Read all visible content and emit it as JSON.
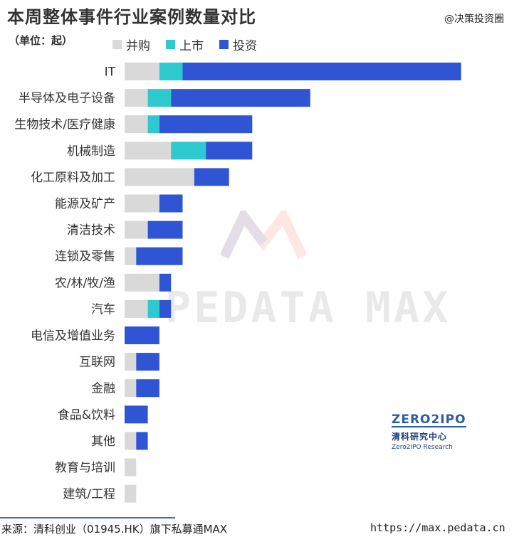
{
  "header": {
    "title": "本周整体事件行业案例数量对比",
    "unit": "（单位：起）",
    "source_tag": "@决策投资圈"
  },
  "chart_data": {
    "type": "bar",
    "orientation": "horizontal",
    "stacked": true,
    "categories": [
      "IT",
      "半导体及电子设备",
      "生物技术/医疗健康",
      "机械制造",
      "化工原料及加工",
      "能源及矿产",
      "清洁技术",
      "连锁及零售",
      "农/林/牧/渔",
      "汽车",
      "电信及增值业务",
      "互联网",
      "金融",
      "食品&饮料",
      "其他",
      "教育与培训",
      "建筑/工程"
    ],
    "series": [
      {
        "name": "并购",
        "color": "#d9d9d9",
        "values": [
          3,
          2,
          2,
          4,
          6,
          3,
          2,
          1,
          3,
          2,
          0,
          1,
          1,
          0,
          1,
          1,
          1
        ]
      },
      {
        "name": "上市",
        "color": "#2ec8cf",
        "values": [
          2,
          2,
          1,
          3,
          0,
          0,
          0,
          0,
          0,
          1,
          0,
          0,
          0,
          0,
          0,
          0,
          0
        ]
      },
      {
        "name": "投资",
        "color": "#2f55d4",
        "values": [
          24,
          12,
          8,
          4,
          3,
          2,
          3,
          4,
          1,
          1,
          3,
          2,
          2,
          2,
          1,
          0,
          0
        ]
      }
    ],
    "legend_position": "top-left",
    "grid": false,
    "xlim": [
      0,
      29
    ]
  },
  "branding": {
    "watermark_text": "PEDATA MAX",
    "logo_text": "ZERO2IPO",
    "logo_cn": "清科研究中心",
    "logo_en": "Zero2IPO Research"
  },
  "footer": {
    "left": "来源：清科创业（01945.HK）旗下私募通MAX",
    "right": "https://max.pedata.cn"
  }
}
